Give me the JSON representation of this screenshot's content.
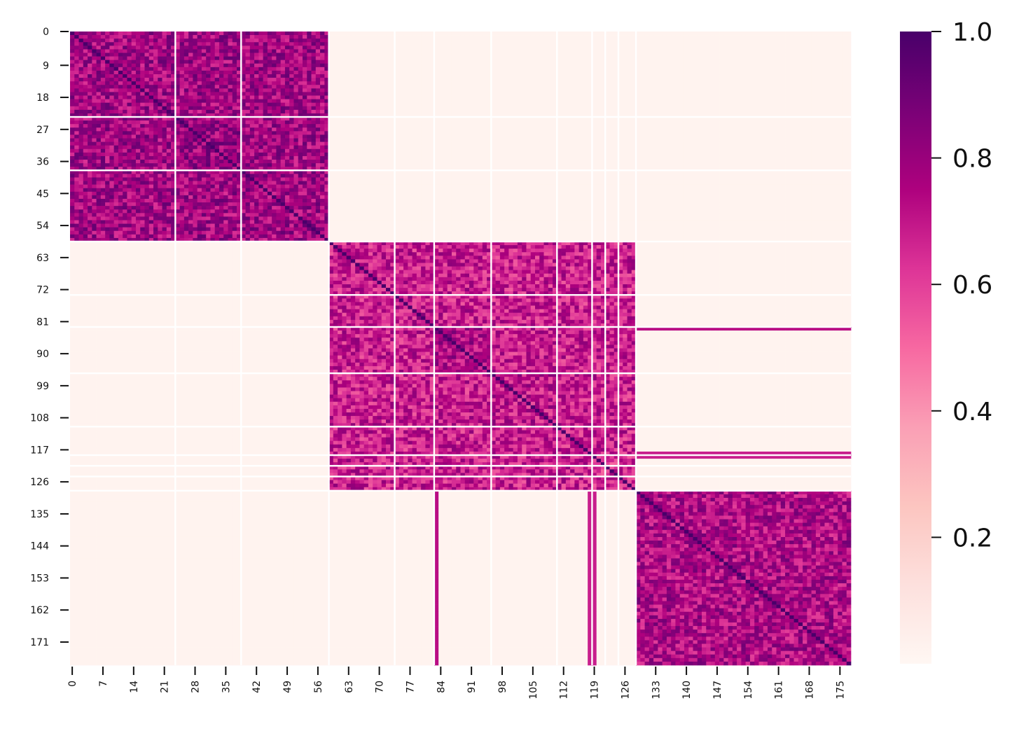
{
  "chart_data": {
    "type": "heatmap",
    "title": "",
    "xlabel": "",
    "ylabel": "",
    "n_rows": 178,
    "n_cols": 178,
    "x_tick_labels": [
      "0",
      "7",
      "14",
      "21",
      "28",
      "35",
      "42",
      "49",
      "56",
      "63",
      "70",
      "77",
      "84",
      "91",
      "98",
      "105",
      "112",
      "119",
      "126",
      "133",
      "140",
      "147",
      "154",
      "161",
      "168",
      "175"
    ],
    "y_tick_labels": [
      "0",
      "9",
      "18",
      "27",
      "36",
      "45",
      "54",
      "63",
      "72",
      "81",
      "90",
      "99",
      "108",
      "117",
      "126",
      "135",
      "144",
      "153",
      "162",
      "171"
    ],
    "colorbar": {
      "min": 0.0,
      "max": 1.0,
      "tick_values": [
        0.2,
        0.4,
        0.6,
        0.8,
        1.0
      ],
      "tick_labels": [
        "0.2",
        "0.4",
        "0.6",
        "0.8",
        "1.0"
      ],
      "colormap": "RdPu",
      "color_stops": [
        "#fff7f3",
        "#fde0dd",
        "#fcc5c0",
        "#fa9fb5",
        "#f768a1",
        "#dd3497",
        "#ae017e",
        "#7a0177",
        "#49006a"
      ]
    },
    "clusters": [
      {
        "range": [
          0,
          23
        ],
        "within": 0.78
      },
      {
        "range": [
          24,
          38
        ],
        "within": 0.8
      },
      {
        "range": [
          39,
          58
        ],
        "within": 0.78
      },
      {
        "range": [
          59,
          73
        ],
        "within": 0.68
      },
      {
        "range": [
          74,
          82
        ],
        "within": 0.7
      },
      {
        "range": [
          83,
          95
        ],
        "within": 0.74
      },
      {
        "range": [
          96,
          110
        ],
        "within": 0.7
      },
      {
        "range": [
          111,
          118
        ],
        "within": 0.68
      },
      {
        "range": [
          119,
          128
        ],
        "within": 0.65
      },
      {
        "range": [
          129,
          177
        ],
        "within": 0.75
      }
    ],
    "between_cluster_values": [
      {
        "rows": [
          0,
          58
        ],
        "cols": [
          0,
          58
        ],
        "value": 0.78
      },
      {
        "rows": [
          59,
          128
        ],
        "cols": [
          59,
          128
        ],
        "value": 0.68
      },
      {
        "rows": [
          129,
          177
        ],
        "cols": [
          129,
          177
        ],
        "value": 0.75
      },
      {
        "rows": [
          0,
          58
        ],
        "cols": [
          59,
          177
        ],
        "value": 0.02
      },
      {
        "rows": [
          59,
          128
        ],
        "cols": [
          129,
          177
        ],
        "value": 0.02
      }
    ],
    "separator_lines": [
      23,
      38,
      58,
      73,
      82,
      95,
      110,
      118,
      121,
      124,
      128
    ],
    "diagonal_value": 1.0
  }
}
